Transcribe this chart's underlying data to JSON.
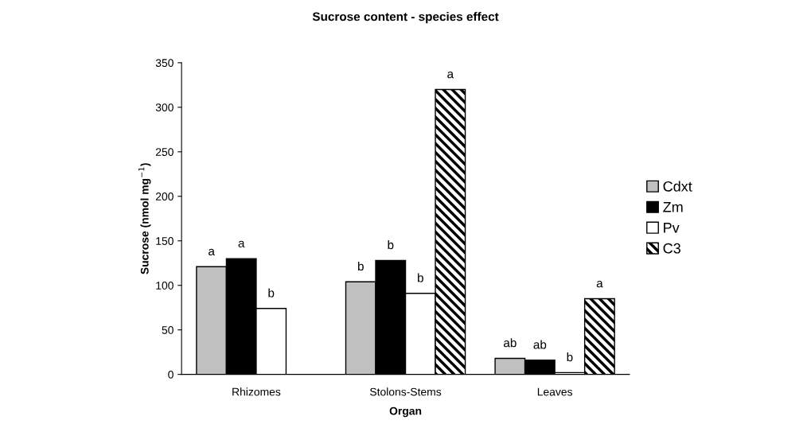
{
  "chart_data": {
    "type": "bar",
    "title": "Sucrose content - species effect",
    "xlabel": "Organ",
    "ylabel": "Sucrose (nmol mg$^{−1}$)",
    "categories": [
      "Rhizomes",
      "Stolons-Stems",
      "Leaves"
    ],
    "series": [
      {
        "name": "Cdxt",
        "color": "#c0c0c0",
        "values": [
          121,
          104,
          18
        ],
        "value_labels": [
          "a",
          "b",
          "ab"
        ]
      },
      {
        "name": "Zm",
        "color": "#000000",
        "values": [
          130,
          128,
          16
        ],
        "value_labels": [
          "a",
          "b",
          "ab"
        ]
      },
      {
        "name": "Pv",
        "color": "#ffffff",
        "values": [
          74,
          91,
          2
        ],
        "value_labels": [
          "b",
          "b",
          "b"
        ]
      },
      {
        "name": "C3",
        "color": "#000000",
        "values": [
          null,
          320,
          85
        ],
        "value_labels": [
          null,
          "a",
          "a"
        ]
      }
    ],
    "ylim": [
      0,
      350
    ],
    "yticks": [
      0,
      50,
      100,
      150,
      200,
      250,
      300,
      350
    ],
    "grid": false,
    "legend": "right"
  }
}
